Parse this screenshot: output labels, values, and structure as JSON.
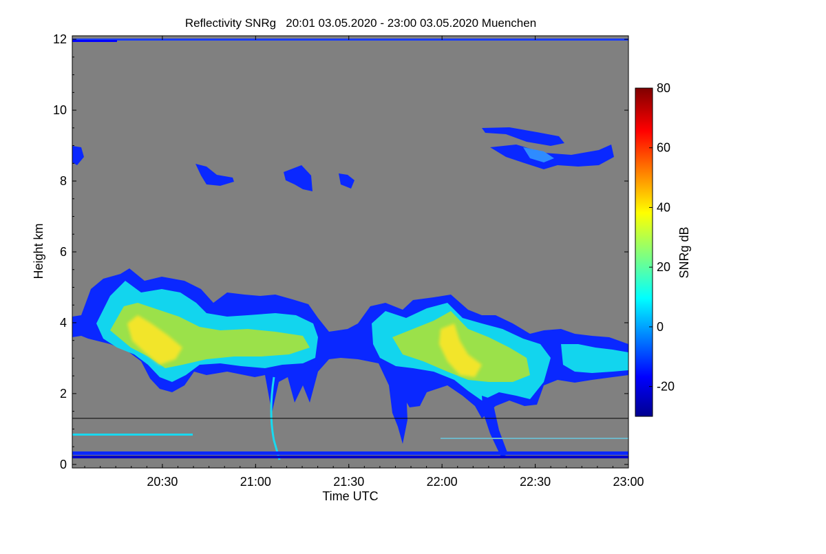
{
  "chart_data": {
    "type": "heatmap",
    "title": "Reflectivity SNRg   20:01 03.05.2020 - 23:00 03.05.2020 Muenchen",
    "xlabel": "Time UTC",
    "ylabel": "Height km",
    "x_range_minutes_utc": [
      1201,
      1380
    ],
    "y_range_km": [
      -0.1,
      12.1
    ],
    "x_ticks": [
      {
        "minute": 1230,
        "label": "20:30"
      },
      {
        "minute": 1260,
        "label": "21:00"
      },
      {
        "minute": 1290,
        "label": "21:30"
      },
      {
        "minute": 1320,
        "label": "22:00"
      },
      {
        "minute": 1350,
        "label": "22:30"
      },
      {
        "minute": 1380,
        "label": "23:00"
      }
    ],
    "y_ticks": [
      0,
      2,
      4,
      6,
      8,
      10,
      12
    ],
    "colorbar": {
      "label": "SNRg dB",
      "range": [
        -30,
        80
      ],
      "ticks": [
        -20,
        0,
        20,
        40,
        60,
        80
      ],
      "colormap": "jet"
    },
    "background_color": "#808080",
    "reference_line_height_km": 1.3,
    "features": [
      {
        "name": "main cloud layer",
        "start_min": 1201,
        "end_min": 1380,
        "base_km": 2.2,
        "top_km": 5.5,
        "peak_snr_db": 38
      },
      {
        "name": "ice cloud streaks",
        "start_min": 1266,
        "end_min": 1287,
        "base_km": 7.8,
        "top_km": 8.7,
        "peak_snr_db": -15
      },
      {
        "name": "upper cloud patches",
        "start_min": 1335,
        "end_min": 1365,
        "base_km": 8.4,
        "top_km": 9.4,
        "peak_snr_db": -12
      },
      {
        "name": "near-ground clutter",
        "start_min": 1201,
        "end_min": 1380,
        "base_km": 0.0,
        "top_km": 0.9,
        "peak_snr_db": -5
      }
    ]
  }
}
